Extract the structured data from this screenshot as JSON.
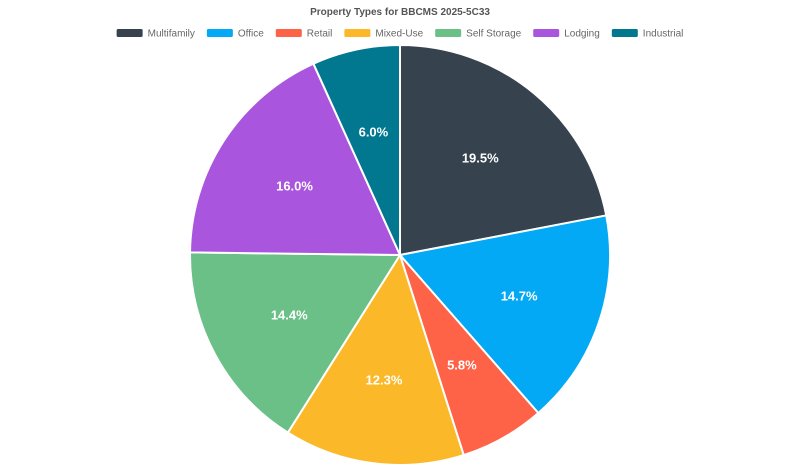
{
  "chart_data": {
    "type": "pie",
    "title": "Property Types for BBCMS 2025-5C33",
    "legend_position": "top",
    "slices": [
      {
        "name": "Multifamily",
        "value": 19.5,
        "label": "19.5%",
        "color": "#36434f"
      },
      {
        "name": "Office",
        "value": 14.7,
        "label": "14.7%",
        "color": "#03a9f4"
      },
      {
        "name": "Retail",
        "value": 5.8,
        "label": "5.8%",
        "color": "#ff6347"
      },
      {
        "name": "Mixed-Use",
        "value": 12.3,
        "label": "12.3%",
        "color": "#fbb829"
      },
      {
        "name": "Self Storage",
        "value": 14.4,
        "label": "14.4%",
        "color": "#6ac087"
      },
      {
        "name": "Lodging",
        "value": 16.0,
        "label": "16.0%",
        "color": "#aa55dd"
      },
      {
        "name": "Industrial",
        "value": 6.0,
        "label": "6.0%",
        "color": "#027890"
      }
    ]
  }
}
